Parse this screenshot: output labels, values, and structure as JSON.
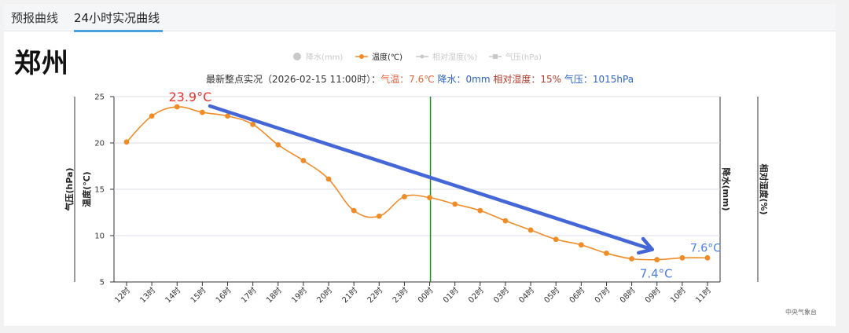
{
  "tabs": [
    {
      "label": "预报曲线",
      "active": false
    },
    {
      "label": "24小时实况曲线",
      "active": true
    }
  ],
  "city": "郑州",
  "legend": [
    {
      "label": "降水(mm)",
      "color": "#c8c8c8",
      "active": false
    },
    {
      "label": "温度(℃)",
      "color": "#f08c28",
      "active": true
    },
    {
      "label": "相对湿度(%)",
      "color": "#c8c8c8",
      "active": false
    },
    {
      "label": "气压(hPa)",
      "color": "#c8c8c8",
      "active": false
    }
  ],
  "observation": {
    "prefix": "最新整点实况（2026-02-15 11:00时）：",
    "temp": "气温：7.6℃",
    "precip": "降水：0mm",
    "humidity": "相对湿度：15%",
    "pressure": "气压：1015hPa"
  },
  "credit": "中央气象台",
  "chart_data": {
    "type": "line",
    "categories": [
      "12时",
      "13时",
      "14时",
      "15时",
      "16时",
      "17时",
      "18时",
      "19时",
      "20时",
      "21时",
      "22时",
      "23时",
      "00时",
      "01时",
      "02时",
      "03时",
      "04时",
      "05时",
      "06时",
      "07时",
      "08时",
      "09时",
      "10时",
      "11时"
    ],
    "series": [
      {
        "name": "温度(℃)",
        "color": "#f08c28",
        "values": [
          20.1,
          22.9,
          23.9,
          23.3,
          22.9,
          22.0,
          19.8,
          18.1,
          16.1,
          12.7,
          12.1,
          14.2,
          14.1,
          13.4,
          12.7,
          11.6,
          10.6,
          9.6,
          9.0,
          8.1,
          7.5,
          7.4,
          7.6,
          7.6
        ]
      }
    ],
    "ylim": [
      5,
      25
    ],
    "yticks": [
      5,
      10,
      15,
      20,
      25
    ],
    "axis_labels": {
      "left_outer": "气压(hPa)",
      "left_inner": "温度(℃)",
      "right_inner": "降水(mm)",
      "right_outer": "相对湿度(%)"
    },
    "marker_line_category": "00时",
    "grid": true,
    "annotations": {
      "max_label": "23.9°C",
      "min_label": "7.4°C",
      "last_label": "7.6°C"
    }
  }
}
